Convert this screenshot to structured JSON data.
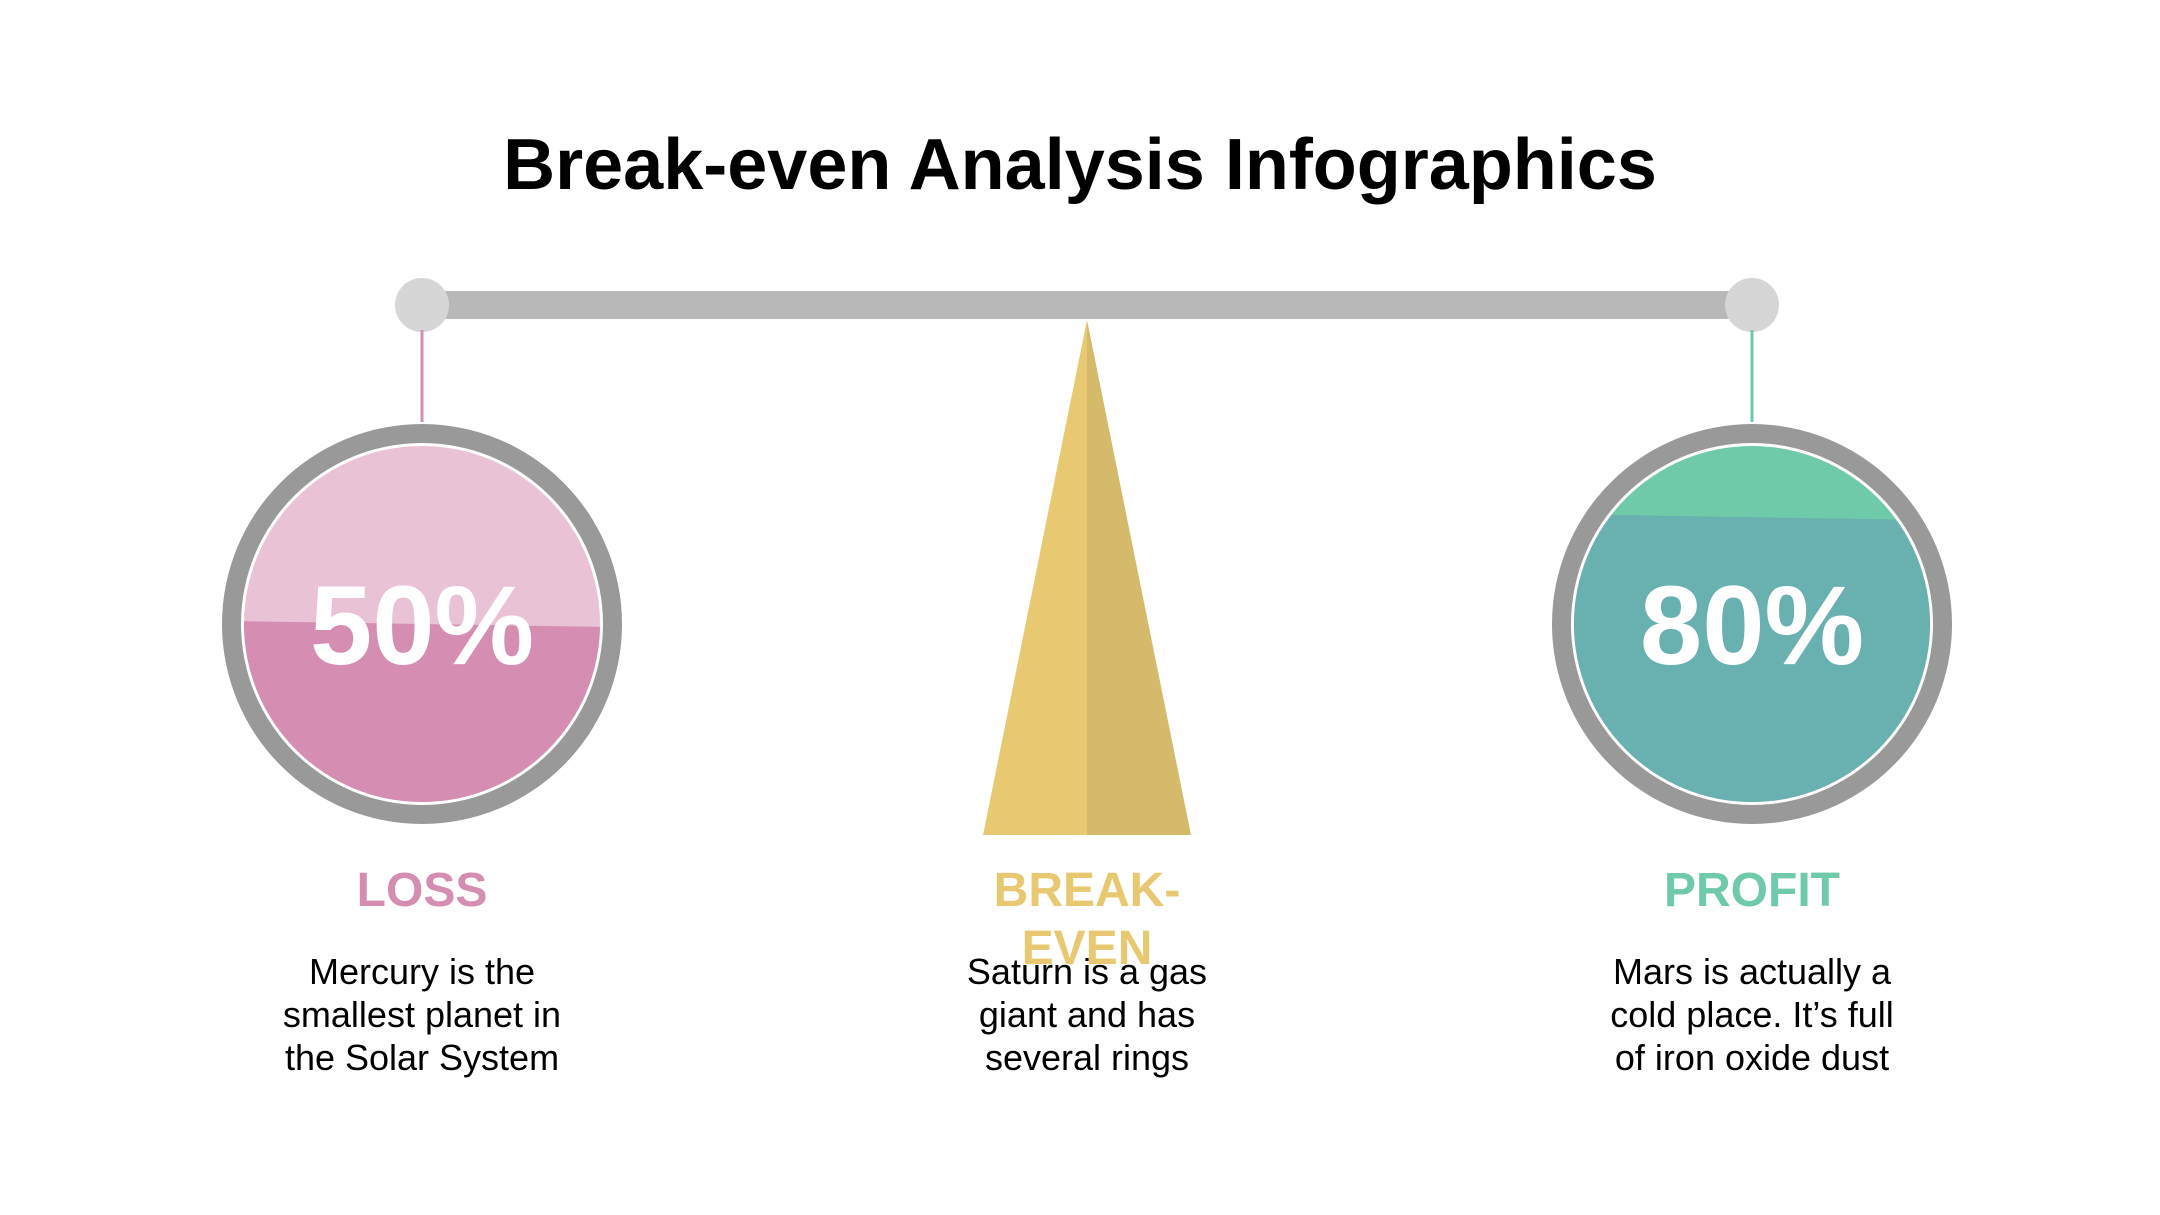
{
  "title": "Break-even Analysis Infographics",
  "colors": {
    "beam": "#b8b8b8",
    "knob": "#d6d6d6",
    "ring": "#999999",
    "loss_light": "#e9c2d5",
    "loss_dark": "#d68db2",
    "loss_text": "#d68db2",
    "breakeven_light": "#e8c870",
    "breakeven_dark": "#d6ba6c",
    "breakeven_text": "#e8c870",
    "profit_light": "#6fcaa9",
    "profit_dark": "#69b0b0",
    "profit_text": "#6fcaa9"
  },
  "loss": {
    "value": "50%",
    "fill_fraction": 0.5,
    "label": "LOSS",
    "desc_lines": [
      "Mercury is the",
      "smallest planet in",
      "the Solar System"
    ]
  },
  "breakeven": {
    "label_lines": [
      "BREAK-",
      "EVEN"
    ],
    "desc_lines": [
      "Saturn is a gas",
      "giant and has",
      "several rings"
    ]
  },
  "profit": {
    "value": "80%",
    "fill_fraction": 0.8,
    "label": "PROFIT",
    "desc_lines": [
      "Mars is actually a",
      "cold place. It’s full",
      "of iron oxide dust"
    ]
  }
}
